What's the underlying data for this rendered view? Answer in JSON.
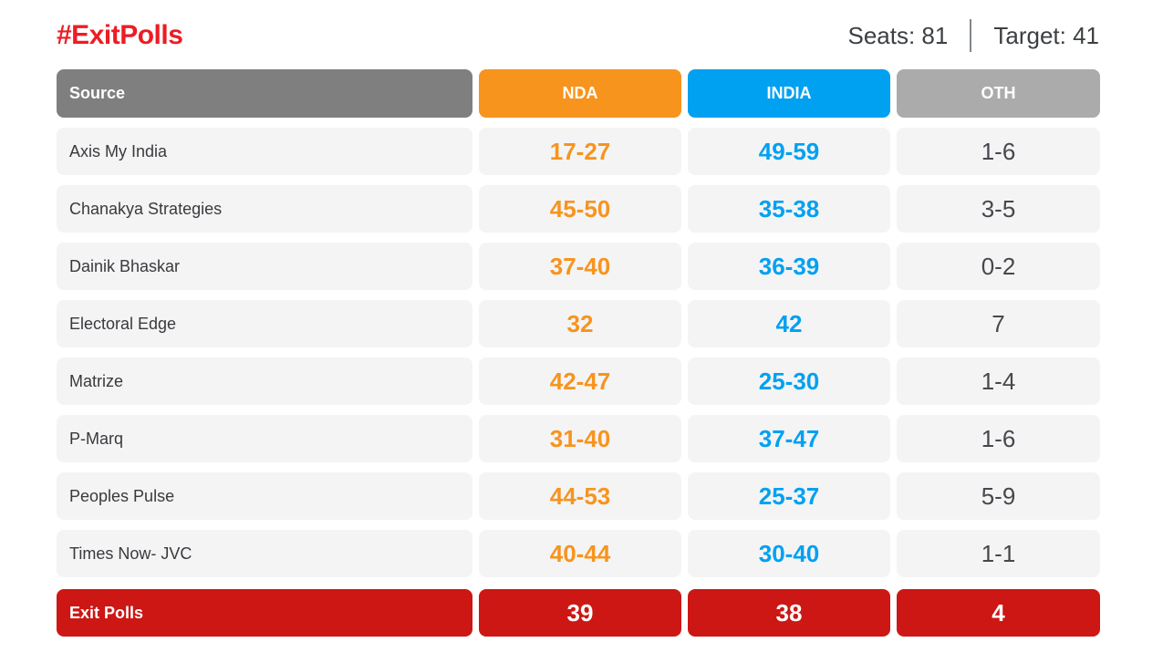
{
  "page_header": {
    "title": "#ExitPolls",
    "seats": "Seats: 81",
    "target": "Target: 41"
  },
  "chart_data": {
    "type": "table",
    "title": "#ExitPolls",
    "columns": [
      "Source",
      "NDA",
      "INDIA",
      "OTH"
    ],
    "rows": [
      [
        "Axis My India",
        "17-27",
        "49-59",
        "1-6"
      ],
      [
        "Chanakya Strategies",
        "45-50",
        "35-38",
        "3-5"
      ],
      [
        "Dainik Bhaskar",
        "37-40",
        "36-39",
        "0-2"
      ],
      [
        "Electoral Edge",
        "32",
        "42",
        "7"
      ],
      [
        "Matrize",
        "42-47",
        "25-30",
        "1-4"
      ],
      [
        "P-Marq",
        "31-40",
        "37-47",
        "1-6"
      ],
      [
        "Peoples Pulse",
        "44-53",
        "25-37",
        "5-9"
      ],
      [
        "Times Now- JVC",
        "40-44",
        "30-40",
        "1-1"
      ]
    ],
    "footer_row": [
      "Exit Polls",
      "39",
      "38",
      "4"
    ]
  },
  "colors": {
    "title_red": "#ED1C24",
    "source_gray": "#7F7F7F",
    "nda_orange": "#F7941E",
    "india_blue": "#00A1F1",
    "oth_gray": "#ABABAB",
    "exit_polls_red": "#CC1714",
    "row_bg": "#F4F4F5",
    "dark_text": "#3C4043"
  }
}
